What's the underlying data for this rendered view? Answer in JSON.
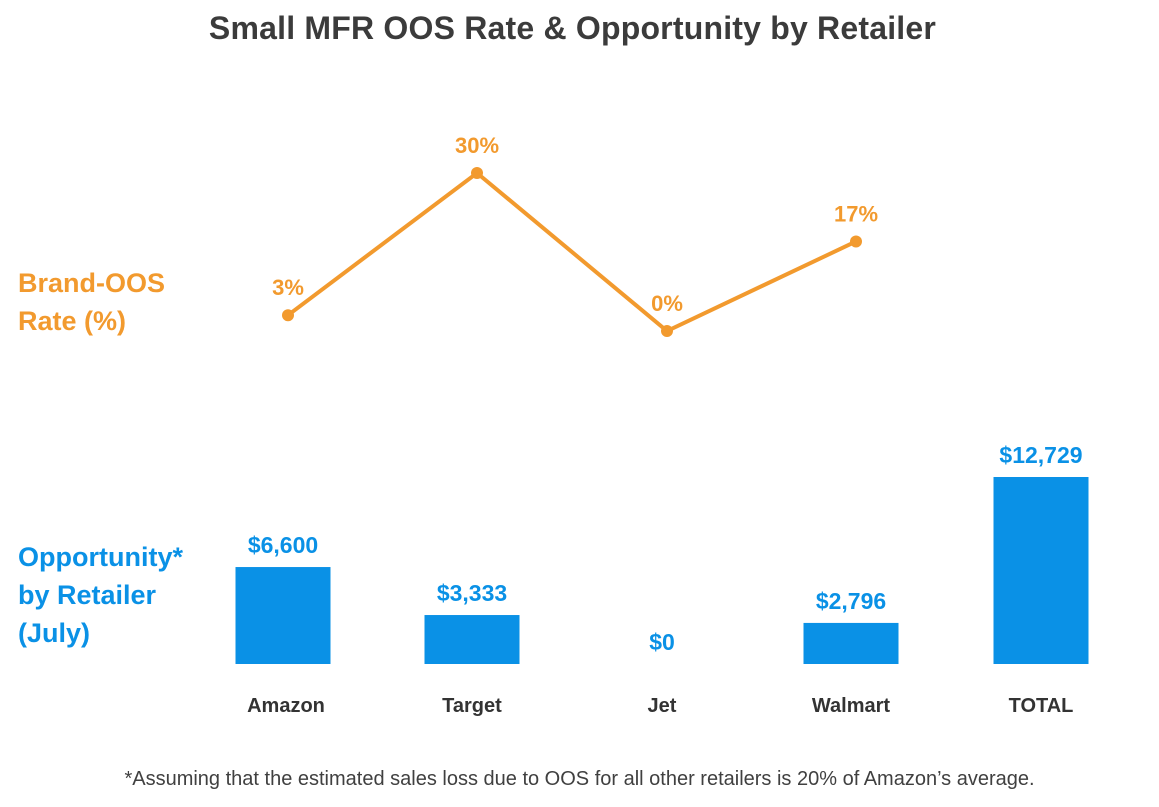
{
  "title": "Small MFR OOS Rate & Opportunity by Retailer",
  "row_labels": {
    "oos_rate": [
      "Brand-OOS",
      "Rate (%)"
    ],
    "opportunity": [
      "Opportunity*",
      "by Retailer",
      "(July)"
    ]
  },
  "footnote": "*Assuming that the estimated sales loss due to OOS for all other retailers is 20% of Amazon’s average.",
  "colors": {
    "line": "#F29A2E",
    "bar": "#0A91E6",
    "title": "#3B3B3B",
    "category": "#333333",
    "footnote": "#404040"
  },
  "chart_data": [
    {
      "type": "line",
      "name": "Brand-OOS Rate (%)",
      "categories": [
        "Amazon",
        "Target",
        "Jet",
        "Walmart"
      ],
      "values": [
        3,
        30,
        0,
        17
      ],
      "labels": [
        "3%",
        "30%",
        "0%",
        "17%"
      ]
    },
    {
      "type": "bar",
      "name": "Opportunity* by Retailer (July)",
      "categories": [
        "Amazon",
        "Target",
        "Jet",
        "Walmart",
        "TOTAL"
      ],
      "values": [
        6600,
        3333,
        0,
        2796,
        12729
      ],
      "labels": [
        "$6,600",
        "$3,333",
        "$0",
        "$2,796",
        "$12,729"
      ]
    }
  ]
}
